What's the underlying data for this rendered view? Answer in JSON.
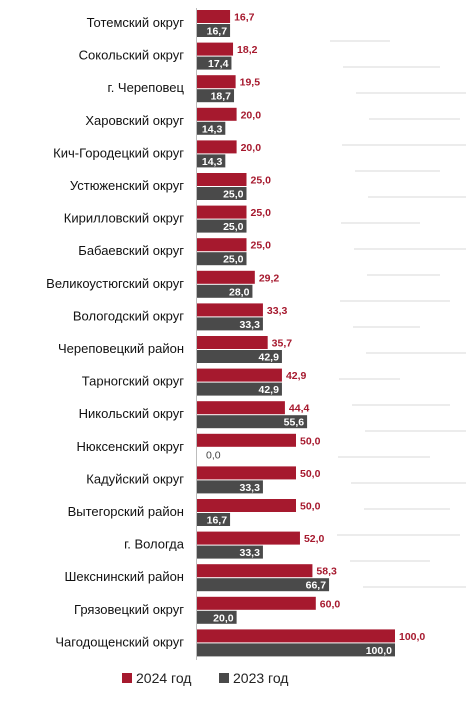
{
  "chart_data": {
    "type": "bar",
    "orientation": "horizontal",
    "categories": [
      "Тотемский округ",
      "Сокольский округ",
      "г. Череповец",
      "Харовский округ",
      "Кич-Городецкий округ",
      "Устюженский округ",
      "Кирилловский округ",
      "Бабаевский округ",
      "Великоустюгский округ",
      "Вологодский округ",
      "Череповецкий район",
      "Тарногский округ",
      "Никольский округ",
      "Нюксенский округ",
      "Кадуйский округ",
      "Вытегорский район",
      "г. Вологда",
      "Шекснинский район",
      "Грязовецкий округ",
      "Чагодощенский округ"
    ],
    "series": [
      {
        "name": "2024 год",
        "color": "#a6192e",
        "values": [
          16.7,
          18.2,
          19.5,
          20.0,
          20.0,
          25.0,
          25.0,
          25.0,
          29.2,
          33.3,
          35.7,
          42.9,
          44.4,
          50.0,
          50.0,
          50.0,
          52.0,
          58.3,
          60.0,
          100.0
        ],
        "labels": [
          "16,7",
          "18,2",
          "19,5",
          "20,0",
          "20,0",
          "25,0",
          "25,0",
          "25,0",
          "29,2",
          "33,3",
          "35,7",
          "42,9",
          "44,4",
          "50,0",
          "50,0",
          "50,0",
          "52,0",
          "58,3",
          "60,0",
          "100,0"
        ]
      },
      {
        "name": "2023 год",
        "color": "#4a4a4a",
        "values": [
          16.7,
          17.4,
          18.7,
          14.3,
          14.3,
          25.0,
          25.0,
          25.0,
          28.0,
          33.3,
          42.9,
          42.9,
          55.6,
          0.0,
          33.3,
          16.7,
          33.3,
          66.7,
          20.0,
          100.0
        ],
        "labels": [
          "16,7",
          "17,4",
          "18,7",
          "14,3",
          "14,3",
          "25,0",
          "25,0",
          "25,0",
          "28,0",
          "33,3",
          "42,9",
          "42,9",
          "55,6",
          "0,0",
          "33,3",
          "16,7",
          "33,3",
          "66,7",
          "20,0",
          "100,0"
        ]
      }
    ],
    "xlim": [
      0,
      100
    ],
    "grid": false,
    "legend_position": "bottom-center"
  },
  "legend": {
    "label_2024": "2024 год",
    "label_2023": "2023 год"
  }
}
